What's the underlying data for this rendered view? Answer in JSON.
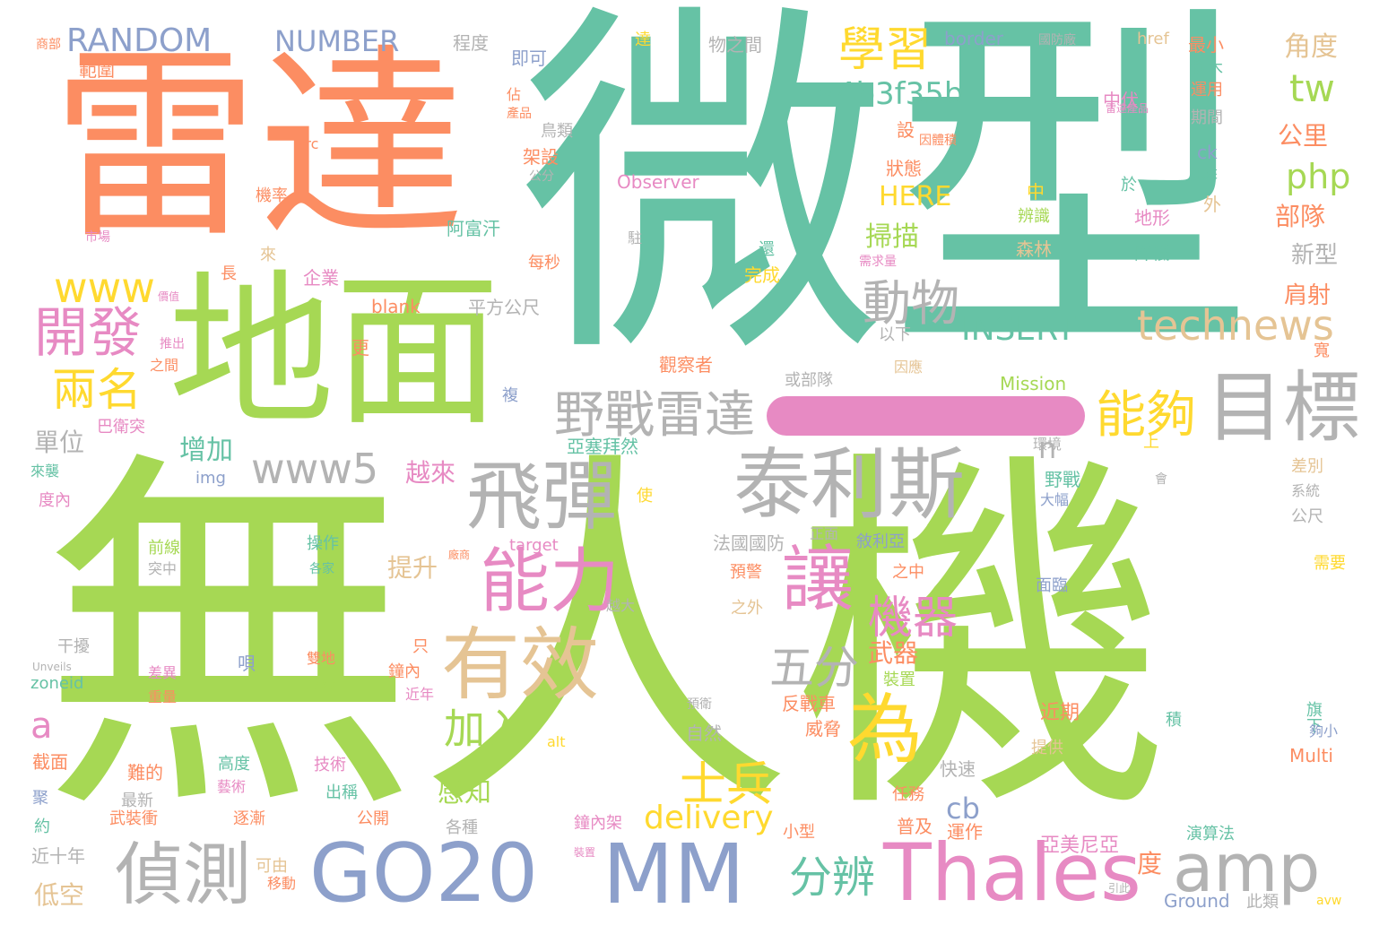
{
  "palette": {
    "green": "#a6d854",
    "teal": "#66c2a5",
    "orange": "#fc8d62",
    "blue": "#8da0cb",
    "pink": "#e78ac3",
    "gray": "#b3b3b3",
    "tan": "#e5c494",
    "yellow": "#ffd92f"
  },
  "bar_color": "#e78ac3",
  "words": [
    {
      "text": "無人機",
      "color": "#a6d854"
    },
    {
      "text": "微型",
      "color": "#66c2a5"
    },
    {
      "text": "雷達",
      "color": "#fc8d62"
    },
    {
      "text": "地面",
      "color": "#a6d854"
    },
    {
      "text": "泰利斯",
      "color": "#b3b3b3"
    },
    {
      "text": "目標",
      "color": "#b3b3b3"
    },
    {
      "text": "飛彈",
      "color": "#b3b3b3"
    },
    {
      "text": "能力",
      "color": "#e78ac3"
    },
    {
      "text": "有效",
      "color": "#e5c494"
    },
    {
      "text": "讓",
      "color": "#e78ac3"
    },
    {
      "text": "為",
      "color": "#ffd92f"
    },
    {
      "text": "GO20",
      "color": "#8da0cb"
    },
    {
      "text": "MM",
      "color": "#8da0cb"
    },
    {
      "text": "Thales",
      "color": "#e78ac3"
    },
    {
      "text": "amp",
      "color": "#b3b3b3"
    },
    {
      "text": "偵測",
      "color": "#b3b3b3"
    },
    {
      "text": "technews",
      "color": "#e5c494"
    },
    {
      "text": "野戰雷達",
      "color": "#b3b3b3"
    },
    {
      "text": "能夠",
      "color": "#ffd92f"
    },
    {
      "text": "開發",
      "color": "#e78ac3"
    },
    {
      "text": "兩名",
      "color": "#ffd92f"
    },
    {
      "text": "www5",
      "color": "#b3b3b3"
    },
    {
      "text": "動物",
      "color": "#b3b3b3"
    },
    {
      "text": "學習",
      "color": "#ffd92f"
    },
    {
      "text": "a4b3f35b",
      "color": "#66c2a5"
    },
    {
      "text": "RANDOM",
      "color": "#8da0cb"
    },
    {
      "text": "NUMBER",
      "color": "#8da0cb"
    },
    {
      "text": "www",
      "color": "#ffd92f"
    },
    {
      "text": "INSERT",
      "color": "#66c2a5"
    },
    {
      "text": "五分",
      "color": "#b3b3b3"
    },
    {
      "text": "機器",
      "color": "#e78ac3"
    },
    {
      "text": "士兵",
      "color": "#ffd92f"
    },
    {
      "text": "加入",
      "color": "#a6d854"
    },
    {
      "text": "分辨",
      "color": "#66c2a5"
    },
    {
      "text": "delivery",
      "color": "#ffd92f"
    },
    {
      "text": "tw",
      "color": "#a6d854"
    },
    {
      "text": "php",
      "color": "#a6d854"
    },
    {
      "text": "HERE",
      "color": "#ffd92f"
    },
    {
      "text": "掃描",
      "color": "#a6d854"
    },
    {
      "text": "增加",
      "color": "#66c2a5"
    },
    {
      "text": "a",
      "color": "#e78ac3"
    },
    {
      "text": "感知",
      "color": "#a6d854"
    },
    {
      "text": "cb",
      "color": "#8da0cb"
    },
    {
      "text": "角度",
      "color": "#e5c494"
    },
    {
      "text": "公里",
      "color": "#fc8d62"
    },
    {
      "text": "部隊",
      "color": "#fc8d62"
    },
    {
      "text": "新型",
      "color": "#b3b3b3"
    },
    {
      "text": "肩射",
      "color": "#fc8d62"
    },
    {
      "text": "單位",
      "color": "#b3b3b3"
    },
    {
      "text": "越來",
      "color": "#e78ac3"
    },
    {
      "text": "n",
      "color": "#b3b3b3"
    },
    {
      "text": "提升",
      "color": "#e5c494"
    },
    {
      "text": "武器",
      "color": "#fc8d62"
    },
    {
      "text": "近期",
      "color": "#fc8d62"
    },
    {
      "text": "度",
      "color": "#fc8d62"
    },
    {
      "text": "亞美尼亞",
      "color": "#e78ac3"
    },
    {
      "text": "運作",
      "color": "#fc8d62"
    },
    {
      "text": "普及",
      "color": "#fc8d62"
    },
    {
      "text": "低空",
      "color": "#e5c494"
    },
    {
      "text": "近十年",
      "color": "#b3b3b3"
    },
    {
      "text": "範圍",
      "color": "#fc8d62"
    },
    {
      "text": "即可",
      "color": "#8da0cb"
    },
    {
      "text": "程度",
      "color": "#b3b3b3"
    },
    {
      "text": "物之間",
      "color": "#b3b3b3"
    },
    {
      "text": "border",
      "color": "#8da0cb"
    },
    {
      "text": "href",
      "color": "#e5c494"
    },
    {
      "text": "最小",
      "color": "#fc8d62"
    },
    {
      "text": "Observer",
      "color": "#e78ac3"
    },
    {
      "text": "blank",
      "color": "#fc8d62"
    },
    {
      "text": "平方公尺",
      "color": "#b3b3b3"
    },
    {
      "text": "Mission",
      "color": "#a6d854"
    },
    {
      "text": "或部隊",
      "color": "#b3b3b3"
    },
    {
      "text": "觀察者",
      "color": "#fc8d62"
    },
    {
      "text": "亞塞拜然",
      "color": "#66c2a5"
    },
    {
      "text": "巴衛突",
      "color": "#e78ac3"
    },
    {
      "text": "img",
      "color": "#8da0cb"
    },
    {
      "text": "target",
      "color": "#e78ac3"
    },
    {
      "text": "法國國防",
      "color": "#b3b3b3"
    },
    {
      "text": "敘利亞",
      "color": "#8da0cb"
    },
    {
      "text": "預警",
      "color": "#fc8d62"
    },
    {
      "text": "面臨",
      "color": "#8da0cb"
    },
    {
      "text": "之外",
      "color": "#e5c494"
    },
    {
      "text": "反戰車",
      "color": "#fc8d62"
    },
    {
      "text": "裝置",
      "color": "#a6d854"
    },
    {
      "text": "威脅",
      "color": "#fc8d62"
    },
    {
      "text": "自然",
      "color": "#b3b3b3"
    },
    {
      "text": "快速",
      "color": "#b3b3b3"
    },
    {
      "text": "提供",
      "color": "#e5c494"
    },
    {
      "text": "任務",
      "color": "#fc8d62"
    },
    {
      "text": "演算法",
      "color": "#66c2a5"
    },
    {
      "text": "Ground",
      "color": "#8da0cb"
    },
    {
      "text": "此類",
      "color": "#b3b3b3"
    },
    {
      "text": "Multi",
      "color": "#fc8d62"
    },
    {
      "text": "avw",
      "color": "#ffd92f"
    },
    {
      "text": "旗下",
      "color": "#66c2a5"
    },
    {
      "text": "夠小",
      "color": "#8da0cb"
    },
    {
      "text": "需要",
      "color": "#ffd92f"
    },
    {
      "text": "差別",
      "color": "#e5c494"
    },
    {
      "text": "系統",
      "color": "#b3b3b3"
    },
    {
      "text": "公尺",
      "color": "#b3b3b3"
    },
    {
      "text": "zoneid",
      "color": "#66c2a5"
    },
    {
      "text": "截面",
      "color": "#fc8d62"
    },
    {
      "text": "難的",
      "color": "#fc8d62"
    },
    {
      "text": "高度",
      "color": "#66c2a5"
    },
    {
      "text": "技術",
      "color": "#e78ac3"
    },
    {
      "text": "出稱",
      "color": "#66c2a5"
    },
    {
      "text": "公開",
      "color": "#fc8d62"
    },
    {
      "text": "逐漸",
      "color": "#fc8d62"
    },
    {
      "text": "最新",
      "color": "#b3b3b3"
    },
    {
      "text": "各種",
      "color": "#b3b3b3"
    },
    {
      "text": "鐘內架",
      "color": "#e78ac3"
    },
    {
      "text": "小型",
      "color": "#fc8d62"
    },
    {
      "text": "移動",
      "color": "#fc8d62"
    },
    {
      "text": "可由",
      "color": "#e5c494"
    },
    {
      "text": "alt",
      "color": "#ffd92f"
    },
    {
      "text": "干擾",
      "color": "#b3b3b3"
    },
    {
      "text": "前線",
      "color": "#a6d854"
    },
    {
      "text": "突中",
      "color": "#b3b3b3"
    },
    {
      "text": "操作",
      "color": "#66c2a5"
    },
    {
      "text": "只",
      "color": "#fc8d62"
    },
    {
      "text": "鐘內",
      "color": "#fc8d62"
    },
    {
      "text": "近年",
      "color": "#e78ac3"
    },
    {
      "text": "越大",
      "color": "#b3b3b3"
    },
    {
      "text": "雙地",
      "color": "#fc8d62"
    },
    {
      "text": "運級",
      "color": "#a6d854"
    },
    {
      "text": "差異",
      "color": "#e78ac3"
    },
    {
      "text": "重量",
      "color": "#fc8d62"
    },
    {
      "text": "度內",
      "color": "#e78ac3"
    },
    {
      "text": "來襲",
      "color": "#66c2a5"
    },
    {
      "text": "環境",
      "color": "#b3b3b3"
    },
    {
      "text": "野戰",
      "color": "#66c2a5"
    },
    {
      "text": "大幅",
      "color": "#8da0cb"
    },
    {
      "text": "使",
      "color": "#ffd92f"
    },
    {
      "text": "之中",
      "color": "#fc8d62"
    },
    {
      "text": "正面",
      "color": "#b3b3b3"
    },
    {
      "text": "以下",
      "color": "#b3b3b3"
    },
    {
      "text": "因應",
      "color": "#e5c494"
    },
    {
      "text": "阿富汗",
      "color": "#66c2a5"
    },
    {
      "text": "企業",
      "color": "#e78ac3"
    },
    {
      "text": "每秒",
      "color": "#fc8d62"
    },
    {
      "text": "完成",
      "color": "#ffd92f"
    },
    {
      "text": "還",
      "color": "#66c2a5"
    },
    {
      "text": "森林",
      "color": "#e5c494"
    },
    {
      "text": "辨識",
      "color": "#a6d854"
    },
    {
      "text": "降低",
      "color": "#66c2a5"
    },
    {
      "text": "地形",
      "color": "#e78ac3"
    },
    {
      "text": "於",
      "color": "#66c2a5"
    },
    {
      "text": "外",
      "color": "#e5c494"
    },
    {
      "text": "中",
      "color": "#ffd92f"
    },
    {
      "text": "狀態",
      "color": "#fc8d62"
    },
    {
      "text": "設",
      "color": "#fc8d62"
    },
    {
      "text": "中伏",
      "color": "#e78ac3"
    },
    {
      "text": "運用",
      "color": "#fc8d62"
    },
    {
      "text": "期間",
      "color": "#b3b3b3"
    },
    {
      "text": "樹木",
      "color": "#66c2a5"
    },
    {
      "text": "ck",
      "color": "#8da0cb"
    },
    {
      "text": "鳥類",
      "color": "#b3b3b3"
    },
    {
      "text": "架設",
      "color": "#fc8d62"
    },
    {
      "text": "src",
      "color": "#fc8d62"
    },
    {
      "text": "機率",
      "color": "#fc8d62"
    },
    {
      "text": "來",
      "color": "#e5c494"
    },
    {
      "text": "長",
      "color": "#fc8d62"
    },
    {
      "text": "更",
      "color": "#fc8d62"
    },
    {
      "text": "之間",
      "color": "#fc8d62"
    },
    {
      "text": "複",
      "color": "#8da0cb"
    },
    {
      "text": "駐",
      "color": "#b3b3b3"
    },
    {
      "text": "達",
      "color": "#ffd92f"
    },
    {
      "text": "上",
      "color": "#ffd92f"
    },
    {
      "text": "積",
      "color": "#66c2a5"
    },
    {
      "text": "寬",
      "color": "#fc8d62"
    },
    {
      "text": "唄",
      "color": "#8da0cb"
    },
    {
      "text": "武裝衝",
      "color": "#fc8d62"
    },
    {
      "text": "約",
      "color": "#66c2a5"
    },
    {
      "text": "聚",
      "color": "#8da0cb"
    },
    {
      "text": "藝術",
      "color": "#e78ac3"
    },
    {
      "text": "商部",
      "color": "#fc8d62"
    },
    {
      "text": "市場",
      "color": "#e78ac3"
    },
    {
      "text": "國防廠",
      "color": "#b3b3b3"
    },
    {
      "text": "佔",
      "color": "#fc8d62"
    },
    {
      "text": "產品",
      "color": "#fc8d62"
    },
    {
      "text": "因體積",
      "color": "#fc8d62"
    },
    {
      "text": "雷達產品",
      "color": "#e78ac3"
    },
    {
      "text": "未來",
      "color": "#66c2a5"
    },
    {
      "text": "需求量",
      "color": "#e78ac3"
    },
    {
      "text": "會",
      "color": "#b3b3b3"
    },
    {
      "text": "Unveils",
      "color": "#b3b3b3"
    },
    {
      "text": "各家",
      "color": "#66c2a5"
    },
    {
      "text": "推出",
      "color": "#e78ac3"
    },
    {
      "text": "廠商",
      "color": "#fc8d62"
    },
    {
      "text": "預衛",
      "color": "#b3b3b3"
    },
    {
      "text": "引此",
      "color": "#b3b3b3"
    },
    {
      "text": "裝置",
      "color": "#e78ac3"
    },
    {
      "text": "價值",
      "color": "#e78ac3"
    },
    {
      "text": "公分",
      "color": "#b3b3b3"
    }
  ]
}
